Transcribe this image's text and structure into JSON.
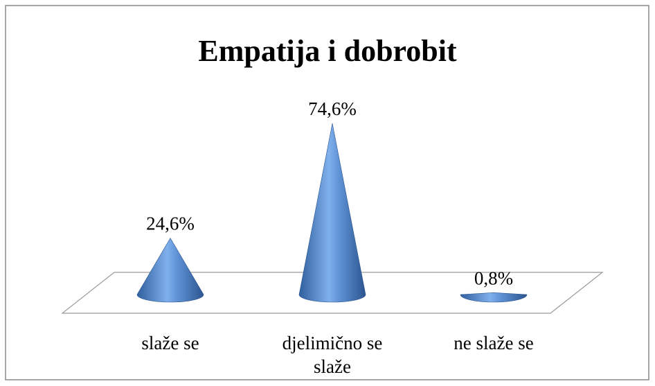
{
  "chart_data": {
    "type": "cone",
    "title": "Empatija i dobrobit",
    "categories": [
      "slaže se",
      "djelimično se slaže",
      "ne slaže se"
    ],
    "values": [
      24.6,
      74.6,
      0.8
    ],
    "value_labels": [
      "24,6%",
      "74,6%",
      "0,8%"
    ],
    "color": "#4f81bd"
  }
}
